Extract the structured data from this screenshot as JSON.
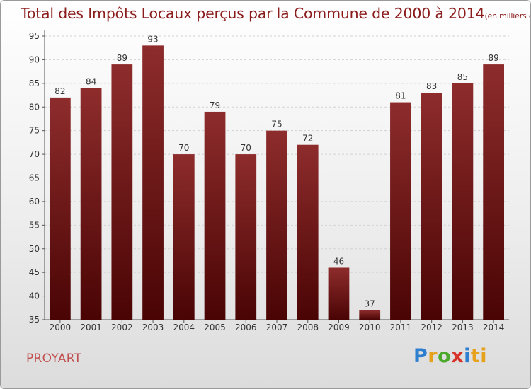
{
  "chart_data": {
    "type": "bar",
    "title": "Total des Impôts Locaux perçus par la Commune de 2000 à 2014",
    "subtitle": "(en milliers d'€)",
    "categories": [
      "2000",
      "2001",
      "2002",
      "2003",
      "2004",
      "2005",
      "2006",
      "2007",
      "2008",
      "2009",
      "2010",
      "2011",
      "2012",
      "2013",
      "2014"
    ],
    "values": [
      82,
      84,
      89,
      93,
      70,
      79,
      70,
      75,
      72,
      46,
      37,
      81,
      83,
      85,
      89
    ],
    "ylim": [
      35,
      95
    ],
    "yticks": [
      35,
      40,
      45,
      50,
      55,
      60,
      65,
      70,
      75,
      80,
      85,
      90,
      95
    ],
    "xlabel": "",
    "ylabel": "",
    "grid": true,
    "bar_color": "#7a1a1a"
  },
  "commune": "PROYART",
  "logo": {
    "text": "Proxiti",
    "letters": [
      "P",
      "r",
      "o",
      "x",
      "i",
      "ti"
    ]
  }
}
